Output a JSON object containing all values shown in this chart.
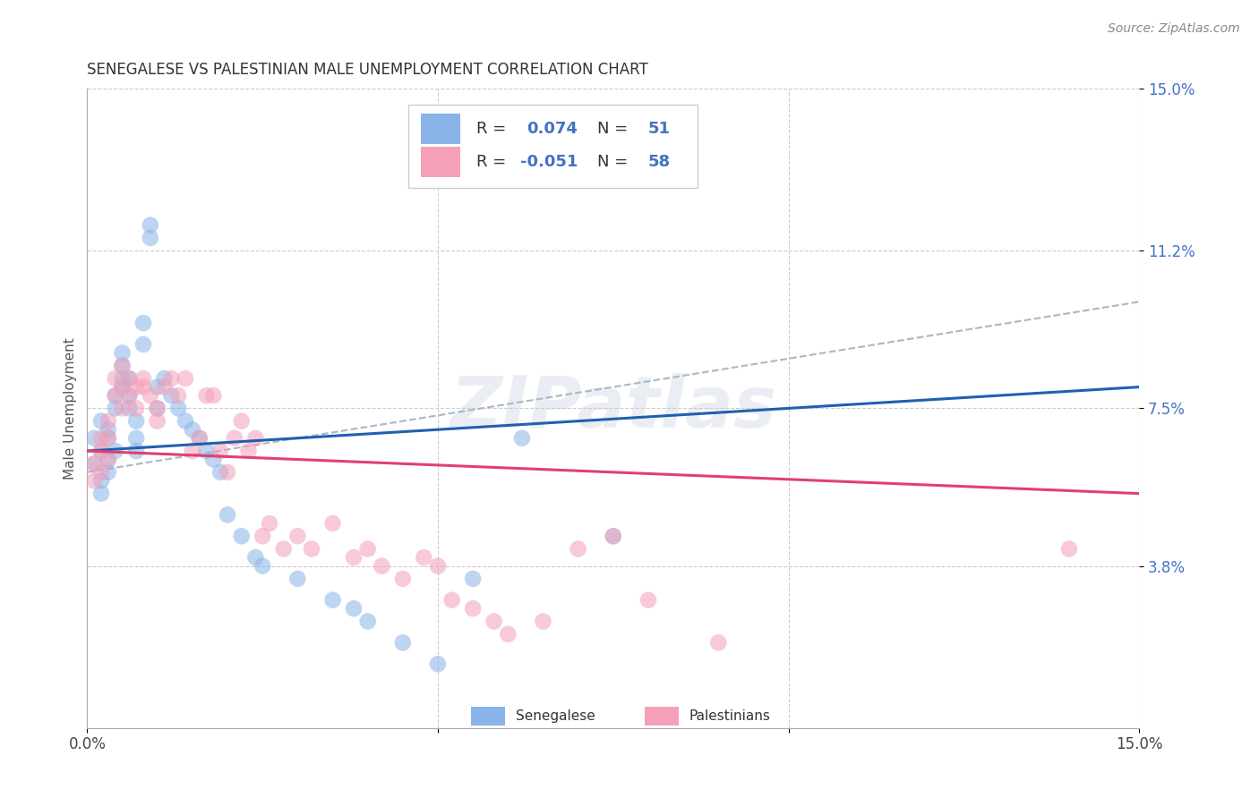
{
  "title": "SENEGALESE VS PALESTINIAN MALE UNEMPLOYMENT CORRELATION CHART",
  "source": "Source: ZipAtlas.com",
  "ylabel": "Male Unemployment",
  "xlim": [
    0.0,
    0.15
  ],
  "ylim": [
    0.0,
    0.15
  ],
  "yticks": [
    0.038,
    0.075,
    0.112,
    0.15
  ],
  "ytick_labels": [
    "3.8%",
    "7.5%",
    "11.2%",
    "15.0%"
  ],
  "watermark": "ZIPatlas",
  "blue_color": "#8ab4e8",
  "pink_color": "#f4a0b8",
  "blue_line_color": "#2060b0",
  "pink_line_color": "#e04070",
  "dashed_line_color": "#a8b8c8",
  "sen_R": 0.074,
  "sen_N": 51,
  "pal_R": -0.051,
  "pal_N": 58,
  "senegalese_x": [
    0.001,
    0.001,
    0.002,
    0.002,
    0.002,
    0.002,
    0.003,
    0.003,
    0.003,
    0.003,
    0.004,
    0.004,
    0.004,
    0.005,
    0.005,
    0.005,
    0.005,
    0.006,
    0.006,
    0.006,
    0.007,
    0.007,
    0.007,
    0.008,
    0.008,
    0.009,
    0.009,
    0.01,
    0.01,
    0.011,
    0.012,
    0.013,
    0.014,
    0.015,
    0.016,
    0.017,
    0.018,
    0.019,
    0.02,
    0.022,
    0.024,
    0.025,
    0.03,
    0.035,
    0.038,
    0.04,
    0.045,
    0.05,
    0.055,
    0.062,
    0.075
  ],
  "senegalese_y": [
    0.068,
    0.062,
    0.072,
    0.065,
    0.058,
    0.055,
    0.07,
    0.068,
    0.063,
    0.06,
    0.075,
    0.078,
    0.065,
    0.082,
    0.08,
    0.085,
    0.088,
    0.082,
    0.078,
    0.075,
    0.068,
    0.072,
    0.065,
    0.09,
    0.095,
    0.115,
    0.118,
    0.08,
    0.075,
    0.082,
    0.078,
    0.075,
    0.072,
    0.07,
    0.068,
    0.065,
    0.063,
    0.06,
    0.05,
    0.045,
    0.04,
    0.038,
    0.035,
    0.03,
    0.028,
    0.025,
    0.02,
    0.015,
    0.035,
    0.068,
    0.045
  ],
  "palestinians_x": [
    0.001,
    0.001,
    0.002,
    0.002,
    0.002,
    0.003,
    0.003,
    0.003,
    0.004,
    0.004,
    0.005,
    0.005,
    0.005,
    0.006,
    0.006,
    0.007,
    0.007,
    0.008,
    0.008,
    0.009,
    0.01,
    0.01,
    0.011,
    0.012,
    0.013,
    0.014,
    0.015,
    0.016,
    0.017,
    0.018,
    0.019,
    0.02,
    0.021,
    0.022,
    0.023,
    0.024,
    0.025,
    0.026,
    0.028,
    0.03,
    0.032,
    0.035,
    0.038,
    0.04,
    0.042,
    0.045,
    0.048,
    0.05,
    0.052,
    0.055,
    0.058,
    0.06,
    0.065,
    0.07,
    0.075,
    0.08,
    0.09,
    0.14
  ],
  "palestinians_y": [
    0.062,
    0.058,
    0.065,
    0.068,
    0.06,
    0.072,
    0.068,
    0.063,
    0.082,
    0.078,
    0.08,
    0.085,
    0.075,
    0.082,
    0.078,
    0.08,
    0.075,
    0.082,
    0.08,
    0.078,
    0.075,
    0.072,
    0.08,
    0.082,
    0.078,
    0.082,
    0.065,
    0.068,
    0.078,
    0.078,
    0.065,
    0.06,
    0.068,
    0.072,
    0.065,
    0.068,
    0.045,
    0.048,
    0.042,
    0.045,
    0.042,
    0.048,
    0.04,
    0.042,
    0.038,
    0.035,
    0.04,
    0.038,
    0.03,
    0.028,
    0.025,
    0.022,
    0.025,
    0.042,
    0.045,
    0.03,
    0.02,
    0.042
  ]
}
